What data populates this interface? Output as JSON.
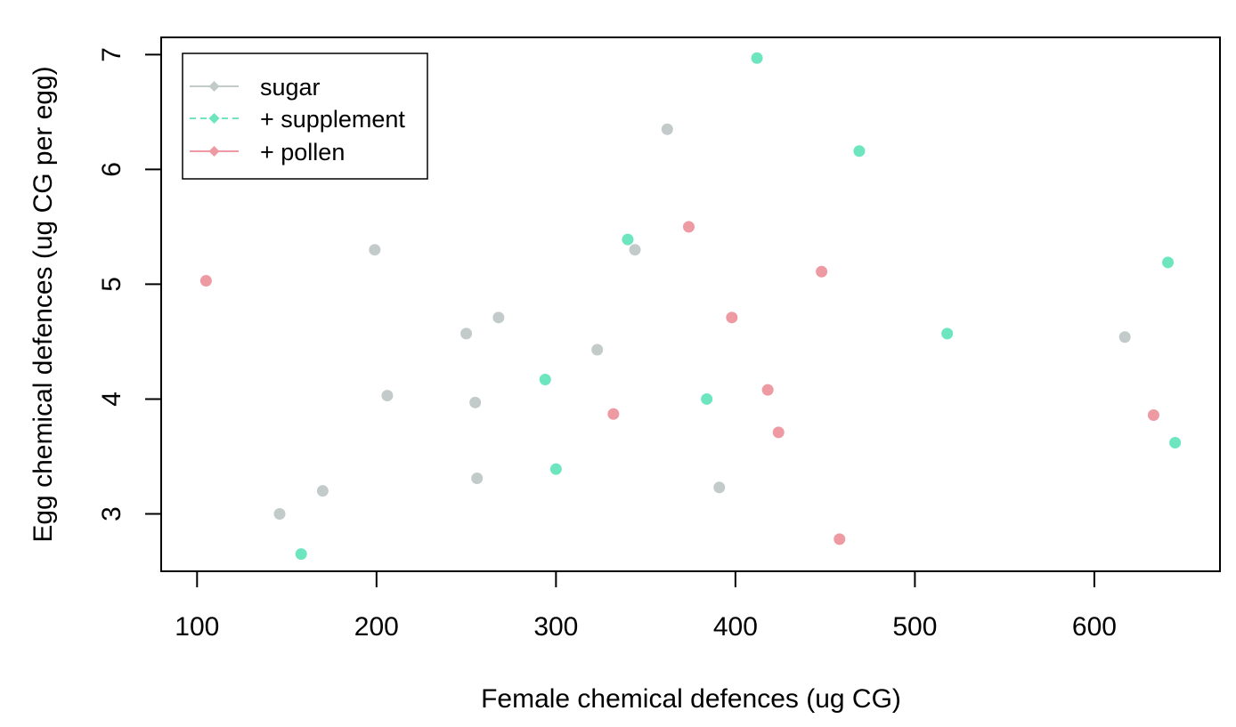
{
  "chart_data": {
    "type": "scatter",
    "title": "",
    "xlabel": "Female chemical defences (ug CG)",
    "ylabel": "Egg chemical defences (ug CG per egg)",
    "xlim": [
      80,
      670
    ],
    "ylim": [
      2.5,
      7.15
    ],
    "xticks": [
      100,
      200,
      300,
      400,
      500,
      600
    ],
    "xtick_labels": [
      "100",
      "200",
      "300",
      "400",
      "500",
      "600"
    ],
    "yticks": [
      3,
      4,
      5,
      6,
      7
    ],
    "ytick_labels": [
      "3",
      "4",
      "5",
      "6",
      "7"
    ],
    "grid": false,
    "legend_position": "top-left",
    "series": [
      {
        "name": "sugar",
        "color": "#c3cbca",
        "line_style": "solid",
        "points": [
          [
            146,
            3.0
          ],
          [
            170,
            3.2
          ],
          [
            199,
            5.3
          ],
          [
            206,
            4.03
          ],
          [
            250,
            4.57
          ],
          [
            255,
            3.97
          ],
          [
            256,
            3.31
          ],
          [
            268,
            4.71
          ],
          [
            323,
            4.43
          ],
          [
            344,
            5.3
          ],
          [
            362,
            6.35
          ],
          [
            391,
            3.23
          ],
          [
            617,
            4.54
          ]
        ]
      },
      {
        "name": "+ supplement",
        "color": "#6de6c0",
        "line_style": "dashed",
        "points": [
          [
            158,
            2.65
          ],
          [
            294,
            4.17
          ],
          [
            300,
            3.39
          ],
          [
            340,
            5.39
          ],
          [
            384,
            4.0
          ],
          [
            412,
            6.97
          ],
          [
            469,
            6.16
          ],
          [
            518,
            4.57
          ],
          [
            641,
            5.19
          ],
          [
            645,
            3.62
          ]
        ]
      },
      {
        "name": "+ pollen",
        "color": "#ee9aa3",
        "line_style": "solid",
        "points": [
          [
            105,
            5.03
          ],
          [
            332,
            3.87
          ],
          [
            374,
            5.5
          ],
          [
            398,
            4.71
          ],
          [
            418,
            4.08
          ],
          [
            424,
            3.71
          ],
          [
            448,
            5.11
          ],
          [
            458,
            2.78
          ],
          [
            633,
            3.86
          ]
        ]
      }
    ]
  }
}
